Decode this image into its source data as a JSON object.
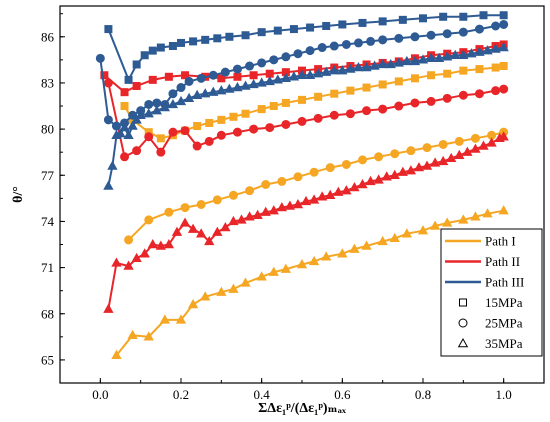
{
  "chart_data": {
    "type": "line",
    "xlabel": "ΣΔε₁ᵖ/(Δε₁ᵖ)ₘₐₓ",
    "ylabel": "θ/°",
    "xlim": [
      -0.1,
      1.1
    ],
    "ylim": [
      63.5,
      88
    ],
    "xticks": [
      0.0,
      0.2,
      0.4,
      0.6,
      0.8,
      1.0
    ],
    "xtick_labels": [
      "0.0",
      "0.2",
      "0.4",
      "0.6",
      "0.8",
      "1.0"
    ],
    "yticks": [
      65,
      68,
      71,
      74,
      77,
      80,
      83,
      86
    ],
    "ytick_labels": [
      "65",
      "68",
      "71",
      "74",
      "77",
      "80",
      "83",
      "86"
    ],
    "grid": false,
    "legend_position": "bottom-right",
    "legend": {
      "paths": [
        {
          "label": "Path I",
          "color": "#f5a623"
        },
        {
          "label": "Path II",
          "color": "#e8262a"
        },
        {
          "label": "Path III",
          "color": "#2e5b94"
        }
      ],
      "markers": [
        {
          "label": "15MPa",
          "marker": "square"
        },
        {
          "label": "25MPa",
          "marker": "circle"
        },
        {
          "label": "35MPa",
          "marker": "triangle"
        }
      ]
    },
    "series": [
      {
        "path": "Path I",
        "pressure": "15MPa",
        "color": "#f5a623",
        "marker": "square",
        "x": [
          0.06,
          0.08,
          0.12,
          0.15,
          0.18,
          0.21,
          0.24,
          0.27,
          0.3,
          0.33,
          0.36,
          0.4,
          0.43,
          0.46,
          0.5,
          0.54,
          0.58,
          0.62,
          0.66,
          0.7,
          0.74,
          0.78,
          0.82,
          0.86,
          0.9,
          0.94,
          0.98,
          1.0
        ],
        "y": [
          81.5,
          80.6,
          79.8,
          79.4,
          79.6,
          79.9,
          80.2,
          80.4,
          80.6,
          80.8,
          81.0,
          81.3,
          81.5,
          81.7,
          81.9,
          82.1,
          82.3,
          82.5,
          82.7,
          82.9,
          83.1,
          83.3,
          83.5,
          83.6,
          83.8,
          83.9,
          84.0,
          84.1
        ]
      },
      {
        "path": "Path I",
        "pressure": "25MPa",
        "color": "#f5a623",
        "marker": "circle",
        "x": [
          0.07,
          0.12,
          0.17,
          0.21,
          0.25,
          0.29,
          0.33,
          0.37,
          0.41,
          0.45,
          0.49,
          0.53,
          0.57,
          0.61,
          0.65,
          0.69,
          0.73,
          0.77,
          0.81,
          0.85,
          0.89,
          0.93,
          0.97,
          1.0
        ],
        "y": [
          72.8,
          74.1,
          74.6,
          74.9,
          75.1,
          75.4,
          75.7,
          76.0,
          76.4,
          76.6,
          76.9,
          77.2,
          77.5,
          77.7,
          78.0,
          78.2,
          78.4,
          78.6,
          78.8,
          79.0,
          79.2,
          79.4,
          79.6,
          79.8
        ]
      },
      {
        "path": "Path I",
        "pressure": "35MPa",
        "color": "#f5a623",
        "marker": "triangle",
        "x": [
          0.04,
          0.08,
          0.12,
          0.16,
          0.2,
          0.23,
          0.26,
          0.3,
          0.33,
          0.36,
          0.4,
          0.43,
          0.46,
          0.5,
          0.53,
          0.56,
          0.6,
          0.63,
          0.66,
          0.7,
          0.73,
          0.76,
          0.8,
          0.83,
          0.86,
          0.9,
          0.93,
          0.96,
          1.0
        ],
        "y": [
          65.3,
          66.6,
          66.5,
          67.6,
          67.6,
          68.6,
          69.1,
          69.4,
          69.6,
          70.0,
          70.4,
          70.7,
          70.9,
          71.2,
          71.4,
          71.7,
          71.9,
          72.2,
          72.4,
          72.7,
          72.9,
          73.2,
          73.4,
          73.7,
          73.9,
          74.1,
          74.3,
          74.5,
          74.7
        ]
      },
      {
        "path": "Path II",
        "pressure": "15MPa",
        "color": "#e8262a",
        "marker": "square",
        "x": [
          0.01,
          0.06,
          0.09,
          0.13,
          0.17,
          0.21,
          0.26,
          0.3,
          0.34,
          0.38,
          0.42,
          0.46,
          0.5,
          0.54,
          0.58,
          0.62,
          0.66,
          0.7,
          0.74,
          0.78,
          0.82,
          0.86,
          0.9,
          0.94,
          0.98,
          1.0
        ],
        "y": [
          83.5,
          82.4,
          82.8,
          83.2,
          83.4,
          83.5,
          83.4,
          83.3,
          83.4,
          83.5,
          83.6,
          83.7,
          83.8,
          83.9,
          84.0,
          84.1,
          84.2,
          84.3,
          84.4,
          84.6,
          84.8,
          84.9,
          85.0,
          85.2,
          85.4,
          85.5
        ]
      },
      {
        "path": "Path II",
        "pressure": "25MPa",
        "color": "#e8262a",
        "marker": "circle",
        "x": [
          0.02,
          0.06,
          0.09,
          0.12,
          0.15,
          0.18,
          0.21,
          0.24,
          0.27,
          0.3,
          0.34,
          0.38,
          0.42,
          0.46,
          0.5,
          0.54,
          0.58,
          0.62,
          0.66,
          0.7,
          0.74,
          0.78,
          0.82,
          0.86,
          0.9,
          0.94,
          0.98,
          1.0
        ],
        "y": [
          83.0,
          78.2,
          78.6,
          79.5,
          78.5,
          79.8,
          79.9,
          78.9,
          79.2,
          79.6,
          79.8,
          80.0,
          80.1,
          80.3,
          80.5,
          80.7,
          80.9,
          81.0,
          81.2,
          81.3,
          81.5,
          81.7,
          81.8,
          82.0,
          82.2,
          82.3,
          82.5,
          82.6
        ]
      },
      {
        "path": "Path II",
        "pressure": "35MPa",
        "color": "#e8262a",
        "marker": "triangle",
        "x": [
          0.02,
          0.04,
          0.07,
          0.09,
          0.11,
          0.13,
          0.15,
          0.17,
          0.19,
          0.21,
          0.23,
          0.25,
          0.27,
          0.29,
          0.31,
          0.33,
          0.35,
          0.37,
          0.39,
          0.41,
          0.43,
          0.45,
          0.47,
          0.49,
          0.51,
          0.53,
          0.55,
          0.57,
          0.59,
          0.61,
          0.63,
          0.65,
          0.67,
          0.69,
          0.71,
          0.73,
          0.75,
          0.77,
          0.79,
          0.81,
          0.83,
          0.85,
          0.87,
          0.89,
          0.91,
          0.93,
          0.95,
          0.97,
          0.99,
          1.0
        ],
        "y": [
          68.3,
          71.3,
          71.1,
          71.6,
          71.9,
          72.5,
          72.4,
          72.5,
          73.3,
          73.9,
          73.5,
          73.2,
          72.7,
          73.3,
          73.6,
          74.0,
          74.1,
          74.3,
          74.4,
          74.6,
          74.7,
          74.9,
          75.0,
          75.1,
          75.3,
          75.4,
          75.6,
          75.7,
          75.9,
          76.0,
          76.2,
          76.4,
          76.6,
          76.7,
          76.9,
          77.0,
          77.2,
          77.3,
          77.5,
          77.6,
          77.8,
          77.9,
          78.1,
          78.3,
          78.5,
          78.7,
          78.9,
          79.1,
          79.4,
          79.5
        ]
      },
      {
        "path": "Path III",
        "pressure": "15MPa",
        "color": "#2e5b94",
        "marker": "square",
        "x": [
          0.02,
          0.07,
          0.09,
          0.11,
          0.13,
          0.15,
          0.18,
          0.2,
          0.23,
          0.26,
          0.29,
          0.32,
          0.36,
          0.4,
          0.44,
          0.48,
          0.52,
          0.56,
          0.6,
          0.65,
          0.7,
          0.75,
          0.8,
          0.85,
          0.9,
          0.95,
          1.0
        ],
        "y": [
          86.5,
          83.2,
          84.2,
          84.8,
          85.1,
          85.3,
          85.4,
          85.6,
          85.7,
          85.8,
          85.9,
          86.0,
          86.1,
          86.3,
          86.4,
          86.5,
          86.6,
          86.7,
          86.8,
          86.9,
          87.0,
          87.1,
          87.2,
          87.3,
          87.3,
          87.4,
          87.4
        ]
      },
      {
        "path": "Path III",
        "pressure": "25MPa",
        "color": "#2e5b94",
        "marker": "circle",
        "x": [
          0.0,
          0.02,
          0.04,
          0.06,
          0.08,
          0.1,
          0.12,
          0.14,
          0.16,
          0.18,
          0.2,
          0.22,
          0.25,
          0.28,
          0.31,
          0.34,
          0.37,
          0.4,
          0.43,
          0.46,
          0.49,
          0.52,
          0.55,
          0.58,
          0.61,
          0.64,
          0.67,
          0.7,
          0.74,
          0.78,
          0.82,
          0.86,
          0.9,
          0.94,
          0.98,
          1.0
        ],
        "y": [
          84.6,
          80.6,
          80.2,
          80.4,
          80.9,
          81.2,
          81.6,
          81.7,
          81.6,
          82.3,
          82.7,
          83.1,
          83.3,
          83.5,
          83.7,
          83.9,
          84.1,
          84.3,
          84.5,
          84.7,
          84.9,
          85.1,
          85.3,
          85.4,
          85.5,
          85.6,
          85.7,
          85.8,
          85.9,
          86.0,
          86.1,
          86.2,
          86.3,
          86.5,
          86.7,
          86.8
        ]
      },
      {
        "path": "Path III",
        "pressure": "35MPa",
        "color": "#2e5b94",
        "marker": "triangle",
        "x": [
          0.02,
          0.03,
          0.04,
          0.05,
          0.06,
          0.07,
          0.08,
          0.09,
          0.1,
          0.12,
          0.14,
          0.16,
          0.18,
          0.2,
          0.22,
          0.24,
          0.26,
          0.28,
          0.3,
          0.32,
          0.34,
          0.36,
          0.38,
          0.4,
          0.42,
          0.44,
          0.46,
          0.48,
          0.5,
          0.52,
          0.54,
          0.56,
          0.58,
          0.6,
          0.62,
          0.64,
          0.66,
          0.68,
          0.7,
          0.72,
          0.74,
          0.76,
          0.78,
          0.8,
          0.82,
          0.84,
          0.86,
          0.88,
          0.9,
          0.92,
          0.94,
          0.96,
          0.98,
          1.0
        ],
        "y": [
          76.3,
          77.6,
          79.6,
          79.7,
          80.1,
          79.6,
          80.2,
          80.6,
          80.9,
          81.0,
          81.2,
          81.4,
          81.6,
          81.8,
          82.0,
          82.2,
          82.3,
          82.4,
          82.5,
          82.6,
          82.7,
          82.8,
          82.9,
          83.0,
          83.1,
          83.2,
          83.3,
          83.4,
          83.5,
          83.5,
          83.6,
          83.7,
          83.8,
          83.8,
          83.9,
          84.0,
          84.0,
          84.1,
          84.2,
          84.2,
          84.3,
          84.4,
          84.4,
          84.5,
          84.6,
          84.6,
          84.7,
          84.8,
          84.8,
          84.9,
          85.0,
          85.1,
          85.2,
          85.3
        ]
      }
    ]
  }
}
